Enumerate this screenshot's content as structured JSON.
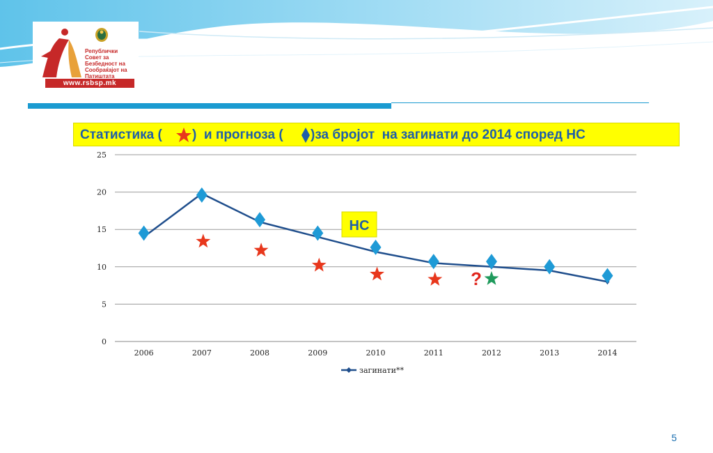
{
  "logo": {
    "line1": "Републички",
    "line2": "Совет за",
    "line3": "Безбедност на",
    "line4": "Сообраќајот на",
    "line5": "Патиштата",
    "url": "www.rsbsp.mk"
  },
  "title": {
    "part1": "Статистика (",
    "part2": ")  и прогноза (",
    "part3": ")за бројот  на загинати до 2014 според НС"
  },
  "annotation_ns": "НС",
  "annotation_question": "?",
  "page_number": "5",
  "colors": {
    "line": "#1f4e8c",
    "diamond": "#1e9ad6",
    "star_red": "#e8371c",
    "star_green": "#1f9a5c",
    "title_bg": "#ffff00",
    "title_text": "#1f5fa8",
    "question": "#e0241b"
  },
  "chart_data": {
    "type": "line",
    "categories": [
      "2006",
      "2007",
      "2008",
      "2009",
      "2010",
      "2011",
      "2012",
      "2013",
      "2014"
    ],
    "series": [
      {
        "name": "загинати**",
        "values": [
          14,
          19.8,
          16,
          14,
          12,
          10.5,
          10,
          9.5,
          8
        ]
      }
    ],
    "forecast_diamonds": [
      14.5,
      19.6,
      16.3,
      14.5,
      12.6,
      10.7,
      10.7,
      10,
      8.8
    ],
    "statistics_stars": [
      {
        "x": "2007",
        "y": 13.4
      },
      {
        "x": "2008",
        "y": 12.2
      },
      {
        "x": "2009",
        "y": 10.2
      },
      {
        "x": "2010",
        "y": 9
      },
      {
        "x": "2011",
        "y": 8.3
      }
    ],
    "green_star": {
      "x": "2012",
      "y": 8.4
    },
    "yticks": [
      "0",
      "5",
      "10",
      "15",
      "20",
      "25"
    ],
    "ylim": [
      0,
      25
    ],
    "grid": true,
    "legend": "bottom"
  }
}
